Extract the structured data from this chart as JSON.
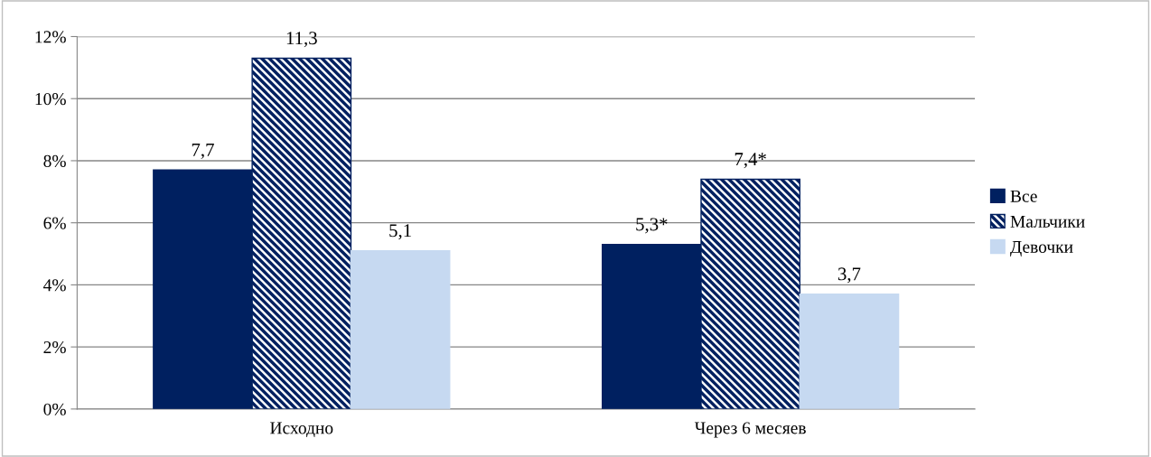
{
  "chart_data": {
    "type": "bar",
    "categories": [
      "Исходно",
      "Через 6 месяев"
    ],
    "series": [
      {
        "name": "Все",
        "color": "#002060",
        "values": [
          7.7,
          5.3
        ],
        "value_labels": [
          "7,7",
          "5,3*"
        ]
      },
      {
        "name": "Мальчики",
        "color": "#002060",
        "values": [
          11.3,
          7.4
        ],
        "value_labels": [
          "11,3",
          "7,4*"
        ]
      },
      {
        "name": "Девочки",
        "color": "#c6d9f1",
        "values": [
          5.1,
          3.7
        ],
        "value_labels": [
          "5,1",
          "3,7"
        ]
      }
    ],
    "ylim": [
      0,
      12
    ],
    "yticks": [
      {
        "value": 0,
        "label": "0%"
      },
      {
        "value": 2,
        "label": "2%"
      },
      {
        "value": 4,
        "label": "4%"
      },
      {
        "value": 6,
        "label": "6%"
      },
      {
        "value": 8,
        "label": "8%"
      },
      {
        "value": 10,
        "label": "10%"
      },
      {
        "value": 12,
        "label": "12%"
      }
    ],
    "grid": "y",
    "legend": "right"
  }
}
